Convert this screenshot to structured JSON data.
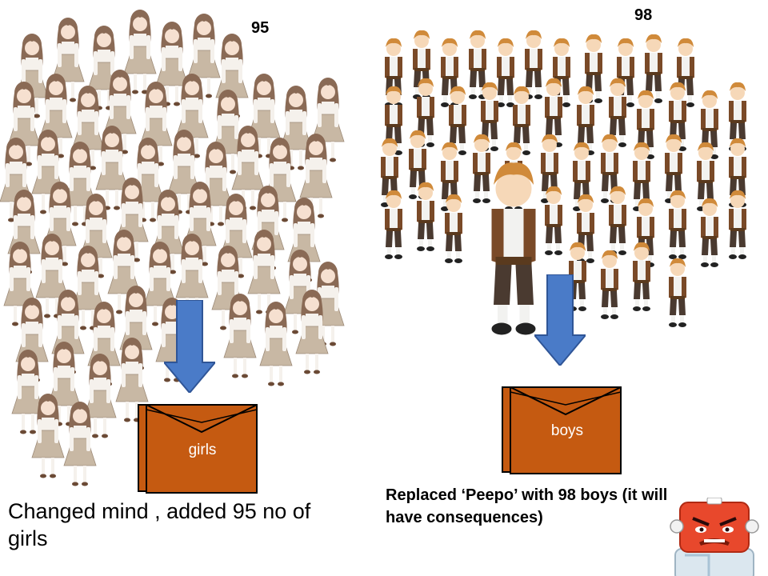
{
  "girls_group": {
    "count_label": "95",
    "box_label": "girls",
    "caption": "Changed mind , added 95 no of girls"
  },
  "boys_group": {
    "count_label": "98",
    "box_label": "boys",
    "caption": "Replaced ‘Peepo’ with 98 boys (it will have consequences)"
  },
  "colors": {
    "arrow": "#4a7bc8",
    "box_fill": "#c55a11",
    "box_border": "#000000",
    "girl_dress": "#c8b8a4",
    "girl_hair": "#8a6a55",
    "boy_vest": "#7a4a28",
    "boy_hair": "#d08a3a",
    "robot_head": "#e8482c"
  }
}
